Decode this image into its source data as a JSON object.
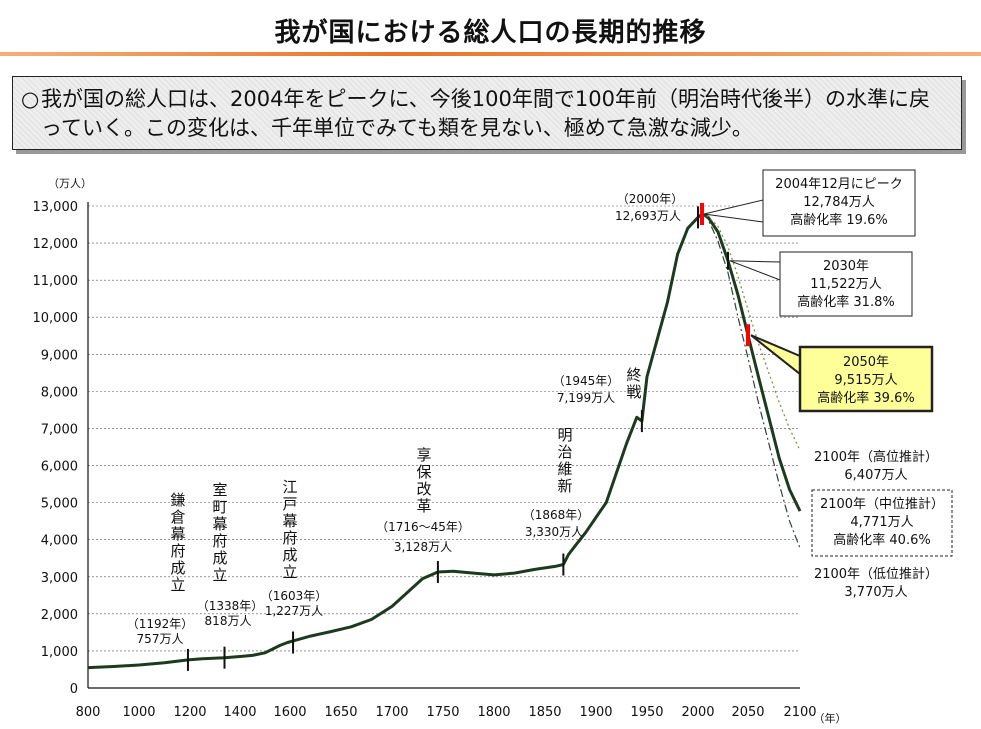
{
  "title": "我が国における総人口の長期的推移",
  "summary": {
    "bullet": "○",
    "text": "我が国の総人口は、2004年をピークに、今後100年間で100年前（明治時代後半）の水準に戻っていく。この変化は、千年単位でみても類を見ない、極めて急激な減少。"
  },
  "chart_data": {
    "type": "line",
    "y_unit": "（万人）",
    "x_unit": "（年）",
    "xlim": [
      800,
      2100
    ],
    "ylim": [
      0,
      13000
    ],
    "x_ticks": [
      "800",
      "1000",
      "1200",
      "1400",
      "1600",
      "1650",
      "1700",
      "1750",
      "1800",
      "1850",
      "1900",
      "1950",
      "2000",
      "2050",
      "2100"
    ],
    "y_ticks": [
      "0",
      "1,000",
      "2,000",
      "3,000",
      "4,000",
      "5,000",
      "6,000",
      "7,000",
      "8,000",
      "9,000",
      "10,000",
      "11,000",
      "12,000",
      "13,000"
    ],
    "grid": true,
    "series": [
      {
        "name": "",
        "x": [
          800,
          900,
          1000,
          1100,
          1192,
          1250,
          1338,
          1400,
          1450,
          1500,
          1530,
          1560,
          1590,
          1603,
          1620,
          1640,
          1660,
          1680,
          1700,
          1716,
          1720,
          1730,
          1745,
          1760,
          1780,
          1800,
          1820,
          1840,
          1860,
          1868,
          1873,
          1880,
          1890,
          1900,
          1910,
          1920,
          1930,
          1940,
          1945,
          1950,
          1960,
          1970,
          1980,
          1990,
          2000,
          2004
        ],
        "y": [
          550,
          580,
          620,
          680,
          757,
          790,
          818,
          850,
          880,
          950,
          1050,
          1150,
          1227,
          1270,
          1400,
          1520,
          1650,
          1850,
          2200,
          2600,
          2700,
          2950,
          3128,
          3150,
          3100,
          3050,
          3100,
          3200,
          3280,
          3330,
          3600,
          3850,
          4200,
          4600,
          5000,
          5800,
          6600,
          7300,
          7199,
          8400,
          9400,
          10400,
          11700,
          12400,
          12693,
          12784
        ]
      },
      {
        "name": "",
        "x": [
          2004,
          2010,
          2020,
          2030,
          2040,
          2050,
          2060,
          2070,
          2080,
          2090,
          2100
        ],
        "y": [
          12784,
          12700,
          12300,
          11522,
          10600,
          9515,
          8400,
          7300,
          6200,
          5350,
          4771
        ]
      },
      {
        "name": "",
        "x": [
          2004,
          2010,
          2020,
          2030,
          2040,
          2050,
          2060,
          2070,
          2080,
          2090,
          2100
        ],
        "y": [
          12784,
          12720,
          12450,
          11900,
          11100,
          10200,
          9300,
          8500,
          7700,
          7000,
          6407
        ]
      },
      {
        "name": "",
        "x": [
          2004,
          2010,
          2020,
          2030,
          2040,
          2050,
          2060,
          2070,
          2080,
          2090,
          2100
        ],
        "y": [
          12784,
          12650,
          12050,
          11200,
          10000,
          8900,
          7700,
          6600,
          5500,
          4500,
          3770
        ]
      }
    ],
    "markers": [
      {
        "x": 1192,
        "y": 757,
        "year": "（1192年）",
        "value": "757万人",
        "event": "鎌倉幕府成立"
      },
      {
        "x": 1338,
        "y": 818,
        "year": "（1338年）",
        "value": "818万人",
        "event": "室町幕府成立"
      },
      {
        "x": 1603,
        "y": 1227,
        "year": "（1603年）",
        "value": "1,227万人",
        "event": "江戸幕府成立"
      },
      {
        "x": 1745,
        "y": 3128,
        "year": "（1716～45年）",
        "value": "3,128万人",
        "event": "享保改革"
      },
      {
        "x": 1868,
        "y": 3330,
        "year": "（1868年）",
        "value": "3,330万人",
        "event": "明治維新"
      },
      {
        "x": 1945,
        "y": 7199,
        "year": "（1945年）",
        "value": "7,199万人",
        "event": "終戦"
      },
      {
        "x": 2000,
        "y": 12693,
        "year": "（2000年）",
        "value": "12,693万人",
        "event": ""
      }
    ],
    "callouts": {
      "peak": {
        "line1": "2004年12月にピーク",
        "line2": "12,784万人",
        "line3": "高齢化率 19.6%"
      },
      "y2030": {
        "line1": "2030年",
        "line2": "11,522万人",
        "line3": "高齢化率 31.8%"
      },
      "y2050": {
        "line1": "2050年",
        "line2": "9,515万人",
        "line3": "高齢化率 39.6%"
      },
      "high": {
        "line1": "2100年（高位推計）",
        "line2": "6,407万人"
      },
      "mid": {
        "line1": "2100年（中位推計）",
        "line2": "4,771万人",
        "line3": "高齢化率 40.6%"
      },
      "low": {
        "line1": "2100年（低位推計）",
        "line2": "3,770万人"
      }
    },
    "colors": {
      "line": "#1e3a1e",
      "marker_peak": "#ff0000",
      "callout_2050_bg": "#ffff99",
      "red_text": "#e00000"
    }
  }
}
